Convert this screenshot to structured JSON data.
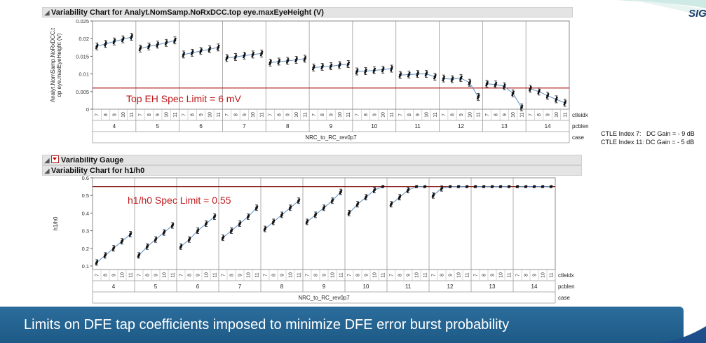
{
  "logo": {
    "text": "SIG"
  },
  "top_panel": {
    "title": "Variability Chart for Analyt.NomSamp.NoRxDCC.top eye.maxEyeHeight (V)",
    "ylabel_line1": "Analyt.NomSamp.NoRxDCC.t",
    "ylabel_line2": "op eye.maxEyeHeight (V)",
    "spec_label": "Top EH Spec Limit = 6 mV"
  },
  "gauge_header": {
    "title": "Variability Gauge"
  },
  "bottom_panel": {
    "title": "Variability Chart for h1/h0",
    "ylabel": "h1/h0",
    "spec_label": "h1/h0 Spec Limit = 0.55"
  },
  "notes": {
    "line1": "CTLE Index 7:   DC Gain = - 9 dB",
    "line2": "CTLE Index 11: DC Gain = - 5 dB"
  },
  "banner": {
    "text": "Limits on DFE tap coefficients imposed to minimize DFE error burst probability"
  },
  "chart_data": [
    {
      "type": "scatter",
      "title": "Variability Chart for Analyt.NomSamp.NoRxDCC.top eye.maxEyeHeight (V)",
      "ylabel": "Analyt.NomSamp.NoRxDCC.top eye.maxEyeHeight (V)",
      "ylim": [
        0,
        0.025
      ],
      "yticks": [
        "0",
        "0.005",
        "0.01",
        "0.015",
        "0.02",
        "0.025"
      ],
      "ytick_values": [
        0,
        0.005,
        0.01,
        0.015,
        0.02,
        0.025
      ],
      "x_levels": {
        "ctleidx": [
          "7",
          "8",
          "9",
          "10",
          "11"
        ],
        "pcblen": [
          "4",
          "5",
          "6",
          "7",
          "8",
          "9",
          "10",
          "11",
          "12",
          "13",
          "14"
        ],
        "case": "NRC_to_RC_rev0p7"
      },
      "row_labels": [
        "ctleidx",
        "pcblen",
        "case"
      ],
      "reference_line": {
        "value": 0.006,
        "label": "Top EH Spec Limit = 6 mV",
        "color": "#b01c1c"
      },
      "groups": [
        {
          "pcblen": "4",
          "means": [
            0.0178,
            0.0185,
            0.0192,
            0.0198,
            0.0205
          ]
        },
        {
          "pcblen": "5",
          "means": [
            0.0172,
            0.0178,
            0.0183,
            0.0188,
            0.0195
          ]
        },
        {
          "pcblen": "6",
          "means": [
            0.0155,
            0.016,
            0.0165,
            0.017,
            0.0175
          ]
        },
        {
          "pcblen": "7",
          "means": [
            0.0145,
            0.0148,
            0.0152,
            0.0155,
            0.0158
          ]
        },
        {
          "pcblen": "8",
          "means": [
            0.0132,
            0.0135,
            0.0137,
            0.014,
            0.0143
          ]
        },
        {
          "pcblen": "9",
          "means": [
            0.0118,
            0.012,
            0.0122,
            0.0125,
            0.0128
          ]
        },
        {
          "pcblen": "10",
          "means": [
            0.0107,
            0.0108,
            0.011,
            0.0112,
            0.0115
          ]
        },
        {
          "pcblen": "11",
          "means": [
            0.0097,
            0.0098,
            0.01,
            0.01,
            0.0092
          ]
        },
        {
          "pcblen": "12",
          "means": [
            0.0087,
            0.0085,
            0.0088,
            0.0075,
            0.0035
          ]
        },
        {
          "pcblen": "13",
          "means": [
            0.0072,
            0.007,
            0.0065,
            0.0045,
            0.0005
          ]
        },
        {
          "pcblen": "14",
          "means": [
            0.0058,
            0.005,
            0.0038,
            0.0028,
            0.0018
          ]
        }
      ]
    },
    {
      "type": "scatter",
      "title": "Variability Chart for h1/h0",
      "ylabel": "h1/h0",
      "ylim": [
        0.08,
        0.6
      ],
      "yticks": [
        "0.1",
        "0.2",
        "0.3",
        "0.4",
        "0.5",
        "0.6"
      ],
      "ytick_values": [
        0.1,
        0.2,
        0.3,
        0.4,
        0.5,
        0.6
      ],
      "x_levels": {
        "ctleidx": [
          "7",
          "8",
          "9",
          "10",
          "11"
        ],
        "pcblen": [
          "4",
          "5",
          "6",
          "7",
          "8",
          "9",
          "10",
          "11",
          "12",
          "13",
          "14"
        ],
        "case": "NRC_to_RC_rev0p7"
      },
      "row_labels": [
        "ctleidx",
        "pcblen",
        "case"
      ],
      "reference_line": {
        "value": 0.55,
        "label": "h1/h0 Spec Limit = 0.55",
        "color": "#8b1a1a"
      },
      "groups": [
        {
          "pcblen": "4",
          "means": [
            0.12,
            0.16,
            0.2,
            0.24,
            0.28
          ]
        },
        {
          "pcblen": "5",
          "means": [
            0.16,
            0.21,
            0.25,
            0.29,
            0.33
          ]
        },
        {
          "pcblen": "6",
          "means": [
            0.21,
            0.25,
            0.3,
            0.34,
            0.38
          ]
        },
        {
          "pcblen": "7",
          "means": [
            0.26,
            0.3,
            0.34,
            0.38,
            0.43
          ]
        },
        {
          "pcblen": "8",
          "means": [
            0.31,
            0.35,
            0.39,
            0.43,
            0.47
          ]
        },
        {
          "pcblen": "9",
          "means": [
            0.35,
            0.39,
            0.43,
            0.47,
            0.52
          ]
        },
        {
          "pcblen": "10",
          "means": [
            0.4,
            0.45,
            0.49,
            0.53,
            0.55
          ]
        },
        {
          "pcblen": "11",
          "means": [
            0.45,
            0.49,
            0.53,
            0.55,
            0.55
          ]
        },
        {
          "pcblen": "12",
          "means": [
            0.5,
            0.54,
            0.55,
            0.55,
            0.55
          ]
        },
        {
          "pcblen": "13",
          "means": [
            0.55,
            0.55,
            0.55,
            0.55,
            0.55
          ]
        },
        {
          "pcblen": "14",
          "means": [
            0.55,
            0.55,
            0.55,
            0.55,
            0.55
          ]
        }
      ]
    }
  ]
}
